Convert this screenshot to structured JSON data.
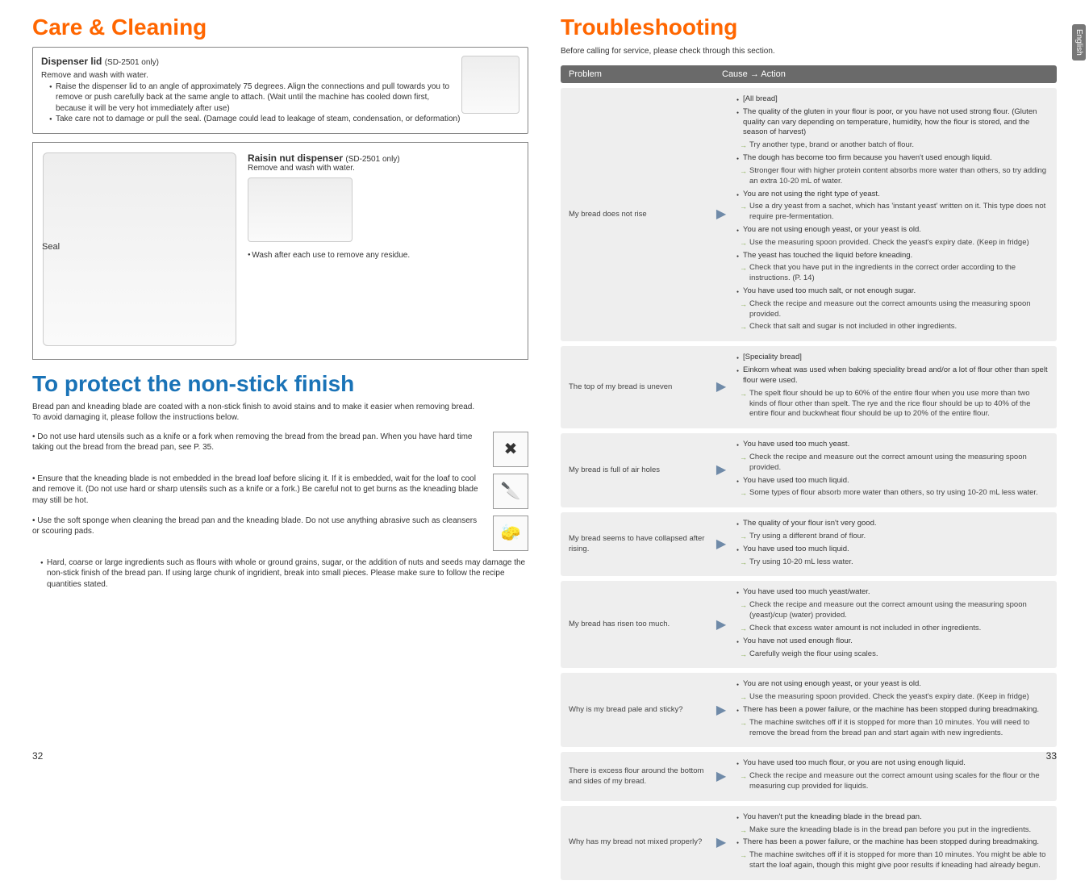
{
  "left": {
    "title": "Care & Cleaning",
    "dispenser": {
      "heading": "Dispenser lid",
      "heading_suffix": "(SD-2501 only)",
      "line1": "Remove and wash with water.",
      "bullets": [
        "Raise the dispenser lid to an angle of approximately 75 degrees. Align the connections and pull towards you to remove or push carefully back at the same angle to attach. (Wait until the machine has cooled down first, because it will be very hot immediately after use)",
        "Take care not to damage or pull the seal. (Damage could lead to leakage of steam, condensation, or deformation)"
      ]
    },
    "seal_label": "Seal",
    "raisin": {
      "heading": "Raisin nut dispenser",
      "heading_suffix": "(SD-2501 only)",
      "sub": "Remove and wash with water.",
      "note": "Wash after each use to remove any residue."
    },
    "nonstick": {
      "title": "To protect the non-stick finish",
      "intro": "Bread pan and kneading blade are coated with a non-stick finish to avoid stains and to make it easier when removing bread.\nTo avoid damaging it, please follow the instructions below.",
      "tips": [
        "Do not use hard utensils such as a knife or a fork when removing the bread from the bread pan. When you have hard time taking out the bread from the bread pan, see P. 35.",
        "Ensure that the kneading blade is not embedded in the bread loaf before slicing it. If it is embedded, wait for the loaf to cool and remove it. (Do not use hard or sharp utensils such as a knife or a fork.) Be careful not to get burns as the kneading blade may still be hot.",
        "Use the soft sponge when cleaning the bread pan and the kneading blade. Do not use anything abrasive such as cleansers or scouring pads."
      ],
      "tip_icons": [
        "✖",
        "🔪",
        "🧽"
      ],
      "warn": "Hard, coarse or large ingredients such as flours with whole or ground grains, sugar, or the addition of nuts and seeds may damage the non-stick finish of the bread pan. If using large chunk of ingridient, break into small pieces. Please make sure to follow the recipe quantities stated."
    },
    "page_num": "32"
  },
  "right": {
    "title": "Troubleshooting",
    "sub": "Before calling for service, please check through this section.",
    "side_tab": "English",
    "header_problem": "Problem",
    "header_action": "Cause → Action",
    "rows": [
      {
        "problem": "My bread does not rise",
        "items": [
          {
            "t": "top",
            "text": "[All bread]"
          },
          {
            "t": "top",
            "text": "The quality of the gluten in your flour is poor, or you have not used strong flour. (Gluten quality can vary depending on temperature, humidity, how the flour is stored, and the season of harvest)"
          },
          {
            "t": "sub",
            "text": "Try another type, brand or another batch of flour."
          },
          {
            "t": "top",
            "text": "The dough has become too firm because you haven't used enough liquid."
          },
          {
            "t": "sub",
            "text": "Stronger flour with higher protein content absorbs more water than others, so try adding an extra 10-20 mL of water."
          },
          {
            "t": "top",
            "text": "You are not using the right type of yeast."
          },
          {
            "t": "sub",
            "text": "Use a dry yeast from a sachet, which has 'instant yeast' written on it. This type does not require pre-fermentation."
          },
          {
            "t": "top",
            "text": "You are not using enough yeast, or your yeast is old."
          },
          {
            "t": "sub",
            "text": "Use the measuring spoon provided. Check the yeast's expiry date. (Keep in fridge)"
          },
          {
            "t": "top",
            "text": "The yeast has touched the liquid before kneading."
          },
          {
            "t": "sub",
            "text": "Check that you have put in the ingredients in the correct order according to the instructions. (P. 14)"
          },
          {
            "t": "top",
            "text": "You have used too much salt, or not enough sugar."
          },
          {
            "t": "sub",
            "text": "Check the recipe and measure out the correct amounts using the measuring spoon provided."
          },
          {
            "t": "sub",
            "text": "Check that salt and sugar is not included in other ingredients."
          }
        ]
      },
      {
        "problem": "The top of my bread is uneven",
        "items": [
          {
            "t": "top",
            "text": "[Speciality bread]"
          },
          {
            "t": "top",
            "text": "Einkorn wheat was used when baking speciality bread and/or a lot of flour other than spelt flour were used."
          },
          {
            "t": "sub",
            "text": "The spelt flour should be up to 60% of the entire flour when you use more than two kinds of flour other than spelt. The rye and the rice flour should be up to 40% of the entire flour and buckwheat flour should be up to 20% of the entire flour."
          }
        ]
      },
      {
        "problem": "My bread is full of air holes",
        "items": [
          {
            "t": "top",
            "text": "You have used too much yeast."
          },
          {
            "t": "sub",
            "text": "Check the recipe and measure out the correct amount using the measuring spoon provided."
          },
          {
            "t": "top",
            "text": "You have used too much liquid."
          },
          {
            "t": "sub",
            "text": "Some types of flour absorb more water than others, so try using 10-20 mL less water."
          }
        ]
      },
      {
        "problem": "My bread seems to have collapsed after rising.",
        "items": [
          {
            "t": "top",
            "text": "The quality of your flour isn't very good."
          },
          {
            "t": "sub",
            "text": "Try using a different brand of flour."
          },
          {
            "t": "top",
            "text": "You have used too much liquid."
          },
          {
            "t": "sub",
            "text": "Try using 10-20 mL less water."
          }
        ]
      },
      {
        "problem": "My bread has risen too much.",
        "items": [
          {
            "t": "top",
            "text": "You have used too much yeast/water."
          },
          {
            "t": "sub",
            "text": "Check the recipe and measure out the correct amount using the measuring spoon (yeast)/cup (water) provided."
          },
          {
            "t": "sub",
            "text": "Check that excess water amount is not included in other ingredients."
          },
          {
            "t": "top",
            "text": "You have not used enough flour."
          },
          {
            "t": "sub",
            "text": "Carefully weigh the flour using scales."
          }
        ]
      },
      {
        "problem": "Why is my bread pale and sticky?",
        "items": [
          {
            "t": "top",
            "text": "You are not using enough yeast, or your yeast is old."
          },
          {
            "t": "sub",
            "text": "Use the measuring spoon provided. Check the yeast's expiry date. (Keep in fridge)"
          },
          {
            "t": "top",
            "text": "There has been a power failure, or the machine has been stopped during breadmaking."
          },
          {
            "t": "sub",
            "text": "The machine switches off if it is stopped for more than 10 minutes. You will need to remove the bread from the bread pan and start again with new ingredients."
          }
        ]
      },
      {
        "problem": "There is excess flour around the bottom and sides of my bread.",
        "items": [
          {
            "t": "top",
            "text": "You have used too much flour, or you are not using enough liquid."
          },
          {
            "t": "sub",
            "text": "Check the recipe and measure out the correct amount using scales for the flour or the measuring cup provided for liquids."
          }
        ]
      },
      {
        "problem": "Why has my bread not mixed properly?",
        "items": [
          {
            "t": "top",
            "text": "You haven't put the kneading blade in the bread pan."
          },
          {
            "t": "sub",
            "text": "Make sure the kneading blade is in the bread pan before you put in the ingredients."
          },
          {
            "t": "top",
            "text": "There has been a power failure, or the machine has been stopped during breadmaking."
          },
          {
            "t": "sub",
            "text": "The machine switches off if it is stopped for more than 10 minutes. You might be able to start the loaf again, though this might give poor results if kneading had already begun."
          }
        ]
      }
    ],
    "page_num": "33"
  }
}
